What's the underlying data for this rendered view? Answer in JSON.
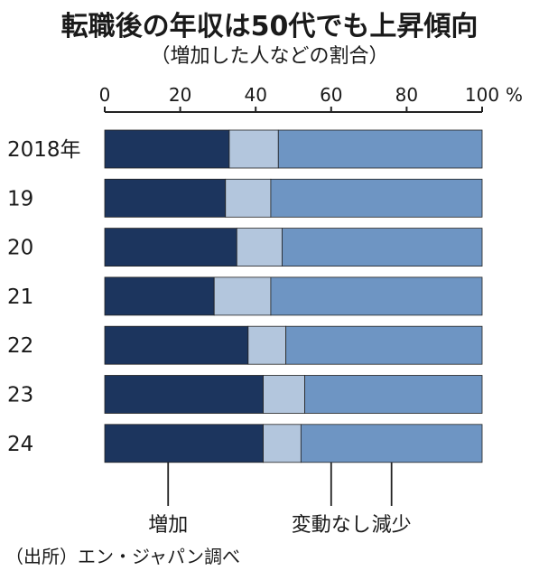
{
  "title": "転職後の年収は50代でも上昇傾向",
  "subtitle": "（増加した人などの割合）",
  "source": "（出所）エン・ジャパン調べ",
  "chart_data": {
    "type": "bar",
    "orientation": "horizontal",
    "stacked": true,
    "categories": [
      "2018年",
      "19",
      "20",
      "21",
      "22",
      "23",
      "24"
    ],
    "series": [
      {
        "name": "増加",
        "color": "#1c355e",
        "values": [
          33,
          32,
          35,
          29,
          38,
          42,
          42
        ]
      },
      {
        "name": "変動なし",
        "color": "#b3c6dd",
        "values": [
          13,
          12,
          12,
          15,
          10,
          11,
          10
        ]
      },
      {
        "name": "減少",
        "color": "#6e95c3",
        "values": [
          54,
          56,
          53,
          56,
          52,
          47,
          48
        ]
      }
    ],
    "xlim": [
      0,
      100
    ],
    "xticks": [
      "0",
      "20",
      "40",
      "60",
      "80",
      "100"
    ],
    "unit": "%",
    "legend_position": "bottom"
  }
}
